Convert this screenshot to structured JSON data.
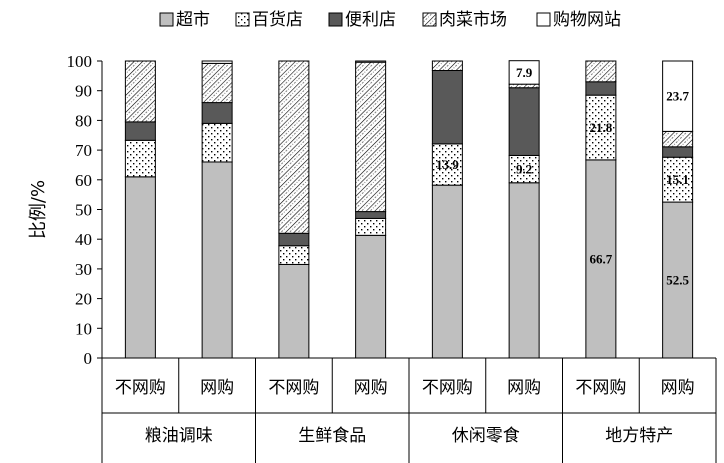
{
  "chart_data": {
    "type": "bar",
    "stacked": true,
    "title": "",
    "ylabel": "比例/%",
    "xlabel": "",
    "ylim": [
      0,
      100
    ],
    "yticks": [
      0,
      10,
      20,
      30,
      40,
      50,
      60,
      70,
      80,
      90,
      100
    ],
    "legend_position": "top",
    "groups": [
      {
        "label": "粮油调味",
        "span": [
          0,
          1
        ]
      },
      {
        "label": "生鲜食品",
        "span": [
          2,
          3
        ]
      },
      {
        "label": "休闲零食",
        "span": [
          4,
          5
        ]
      },
      {
        "label": "地方特产",
        "span": [
          6,
          7
        ]
      }
    ],
    "categories": [
      "不网购",
      "网购",
      "不网购",
      "网购",
      "不网购",
      "网购",
      "不网购",
      "网购"
    ],
    "series": [
      {
        "name": "超市",
        "pattern": "solid-gray",
        "color": "#bfbfbf",
        "values": [
          61,
          66,
          31.5,
          41.3,
          58.2,
          59,
          66.7,
          52.5
        ]
      },
      {
        "name": "百货店",
        "pattern": "dots",
        "color": "#ffffff",
        "values": [
          12.3,
          13,
          6.3,
          5.7,
          13.9,
          9.2,
          21.8,
          15.1
        ]
      },
      {
        "name": "便利店",
        "pattern": "solid-dark",
        "color": "#595959",
        "values": [
          6.2,
          7,
          4.2,
          2.3,
          24.7,
          22.8,
          4.5,
          3.5
        ]
      },
      {
        "name": "肉菜市场",
        "pattern": "hatch",
        "color": "#ffffff",
        "values": [
          20.5,
          13.2,
          58,
          50.3,
          3.2,
          1.2,
          7,
          5.2
        ]
      },
      {
        "name": "购物网站",
        "pattern": "white",
        "color": "#ffffff",
        "values": [
          0,
          0.8,
          0,
          0.4,
          0,
          7.9,
          0,
          23.7
        ]
      }
    ],
    "data_labels": [
      {
        "category_index": 4,
        "series": "百货店",
        "text": "13.9"
      },
      {
        "category_index": 5,
        "series": "百货店",
        "text": "9.2"
      },
      {
        "category_index": 5,
        "series": "购物网站",
        "text": "7.9"
      },
      {
        "category_index": 6,
        "series": "超市",
        "text": "66.7"
      },
      {
        "category_index": 6,
        "series": "百货店",
        "text": "21.8"
      },
      {
        "category_index": 7,
        "series": "超市",
        "text": "52.5"
      },
      {
        "category_index": 7,
        "series": "百货店",
        "text": "15.1"
      },
      {
        "category_index": 7,
        "series": "购物网站",
        "text": "23.7"
      }
    ]
  }
}
